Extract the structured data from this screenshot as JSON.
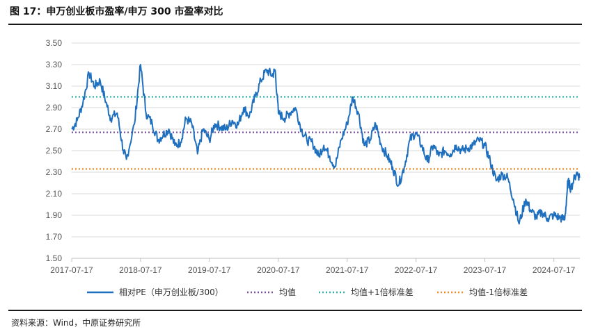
{
  "header": {
    "title": "图 17：申万创业板市盈率/申万 300 市盈率对比"
  },
  "footer": {
    "source": "资料来源：Wind，中原证券研究所"
  },
  "chart_data": {
    "type": "line",
    "title": "图 17：申万创业板市盈率/申万 300 市盈率对比",
    "xlabel": "",
    "ylabel": "",
    "ylim": [
      1.5,
      3.5
    ],
    "yticks": [
      "3.50",
      "3.30",
      "3.10",
      "2.90",
      "2.70",
      "2.50",
      "2.30",
      "2.10",
      "1.90",
      "1.70",
      "1.50"
    ],
    "xticks": [
      "2017-07-17",
      "2018-07-17",
      "2019-07-17",
      "2020-07-17",
      "2021-07-17",
      "2022-07-17",
      "2023-07-17",
      "2024-07-17"
    ],
    "grid": "horizontal",
    "legend_position": "bottom",
    "colors": {
      "series": "#1f6fbf",
      "mean": "#7a4fa3",
      "plus1": "#2bb3a8",
      "minus1": "#f08a24"
    },
    "series": [
      {
        "name": "相对PE（申万创业板/300）",
        "points": [
          [
            "2017-07-17",
            2.7
          ],
          [
            "2017-08-15",
            2.78
          ],
          [
            "2017-09-15",
            2.95
          ],
          [
            "2017-10-17",
            3.22
          ],
          [
            "2017-11-15",
            3.1
          ],
          [
            "2017-12-15",
            3.15
          ],
          [
            "2018-01-15",
            2.95
          ],
          [
            "2018-02-09",
            2.8
          ],
          [
            "2018-03-15",
            2.85
          ],
          [
            "2018-04-17",
            2.5
          ],
          [
            "2018-05-03",
            2.42
          ],
          [
            "2018-06-15",
            2.75
          ],
          [
            "2018-07-17",
            3.3
          ],
          [
            "2018-08-15",
            2.85
          ],
          [
            "2018-09-17",
            2.75
          ],
          [
            "2018-10-18",
            2.6
          ],
          [
            "2018-11-15",
            2.65
          ],
          [
            "2018-12-14",
            2.7
          ],
          [
            "2019-01-15",
            2.55
          ],
          [
            "2019-02-15",
            2.58
          ],
          [
            "2019-03-15",
            2.8
          ],
          [
            "2019-04-15",
            2.75
          ],
          [
            "2019-05-15",
            2.47
          ],
          [
            "2019-06-14",
            2.7
          ],
          [
            "2019-07-17",
            2.6
          ],
          [
            "2019-08-15",
            2.75
          ],
          [
            "2019-09-16",
            2.72
          ],
          [
            "2019-10-15",
            2.7
          ],
          [
            "2019-11-15",
            2.78
          ],
          [
            "2019-12-16",
            2.74
          ],
          [
            "2020-01-15",
            2.9
          ],
          [
            "2020-02-14",
            2.82
          ],
          [
            "2020-03-16",
            3.0
          ],
          [
            "2020-04-15",
            3.15
          ],
          [
            "2020-05-15",
            3.25
          ],
          [
            "2020-06-15",
            3.2
          ],
          [
            "2020-06-30",
            3.25
          ],
          [
            "2020-07-17",
            2.85
          ],
          [
            "2020-08-17",
            2.8
          ],
          [
            "2020-09-15",
            2.85
          ],
          [
            "2020-10-15",
            2.9
          ],
          [
            "2020-11-16",
            2.7
          ],
          [
            "2020-12-15",
            2.6
          ],
          [
            "2021-01-15",
            2.57
          ],
          [
            "2021-02-15",
            2.45
          ],
          [
            "2021-03-15",
            2.55
          ],
          [
            "2021-04-15",
            2.45
          ],
          [
            "2021-05-14",
            2.35
          ],
          [
            "2021-06-15",
            2.6
          ],
          [
            "2021-07-17",
            2.75
          ],
          [
            "2021-08-16",
            3.0
          ],
          [
            "2021-09-15",
            2.85
          ],
          [
            "2021-10-15",
            2.55
          ],
          [
            "2021-11-15",
            2.6
          ],
          [
            "2021-12-15",
            2.75
          ],
          [
            "2022-01-14",
            2.55
          ],
          [
            "2022-02-15",
            2.45
          ],
          [
            "2022-03-15",
            2.35
          ],
          [
            "2022-04-15",
            2.18
          ],
          [
            "2022-05-16",
            2.35
          ],
          [
            "2022-06-15",
            2.6
          ],
          [
            "2022-07-15",
            2.67
          ],
          [
            "2022-08-15",
            2.55
          ],
          [
            "2022-09-15",
            2.4
          ],
          [
            "2022-10-17",
            2.55
          ],
          [
            "2022-11-15",
            2.45
          ],
          [
            "2022-12-15",
            2.5
          ],
          [
            "2023-01-16",
            2.47
          ],
          [
            "2023-02-15",
            2.55
          ],
          [
            "2023-03-15",
            2.5
          ],
          [
            "2023-04-14",
            2.52
          ],
          [
            "2023-05-15",
            2.55
          ],
          [
            "2023-06-15",
            2.6
          ],
          [
            "2023-07-17",
            2.55
          ],
          [
            "2023-08-15",
            2.4
          ],
          [
            "2023-09-15",
            2.22
          ],
          [
            "2023-10-16",
            2.28
          ],
          [
            "2023-11-15",
            2.25
          ],
          [
            "2023-12-15",
            2.05
          ],
          [
            "2024-01-15",
            1.82
          ],
          [
            "2024-02-19",
            2.05
          ],
          [
            "2024-03-15",
            1.95
          ],
          [
            "2024-04-15",
            1.88
          ],
          [
            "2024-05-15",
            1.93
          ],
          [
            "2024-06-14",
            1.87
          ],
          [
            "2024-07-15",
            1.9
          ],
          [
            "2024-08-15",
            1.88
          ],
          [
            "2024-09-13",
            1.86
          ],
          [
            "2024-09-30",
            2.22
          ],
          [
            "2024-10-15",
            2.15
          ],
          [
            "2024-11-15",
            2.3
          ],
          [
            "2024-12-02",
            2.25
          ]
        ]
      },
      {
        "name": "均值",
        "value": 2.67,
        "style": "dotted"
      },
      {
        "name": "均值+1倍标准差",
        "value": 3.0,
        "style": "dotted"
      },
      {
        "name": "均值-1倍标准差",
        "value": 2.33,
        "style": "dotted"
      }
    ]
  }
}
